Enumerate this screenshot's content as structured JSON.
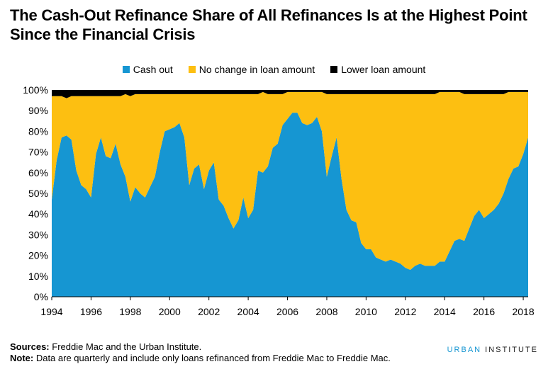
{
  "title": "The Cash-Out Refinance Share of All Refinances Is at the Highest Point Since the Financial Crisis",
  "colors": {
    "cash_out": "#1696d2",
    "no_change": "#fdbf11",
    "lower": "#000000"
  },
  "footer": {
    "sources_label": "Sources:",
    "sources_text": " Freddie Mac and the Urban Institute.",
    "note_label": "Note:",
    "note_text": " Data are quarterly and include only loans refinanced from Freddie Mac to Freddie Mac."
  },
  "brand": {
    "part1": "URBAN",
    "part2": " INSTITUTE"
  },
  "chart_data": {
    "type": "area",
    "stacked": true,
    "legend_position": "top",
    "grid": false,
    "x_start_quarter": "1994Q1",
    "x_ticks": [
      "1994",
      "1996",
      "1998",
      "2000",
      "2002",
      "2004",
      "2006",
      "2008",
      "2010",
      "2012",
      "2014",
      "2016",
      "2018"
    ],
    "y_ticks": [
      "0%",
      "10%",
      "20%",
      "30%",
      "40%",
      "50%",
      "60%",
      "70%",
      "80%",
      "90%",
      "100%"
    ],
    "ylim": [
      0,
      100
    ],
    "series": [
      {
        "name": "Cash out",
        "color": "#1696d2",
        "values": [
          47,
          66,
          77,
          78,
          76,
          61,
          54,
          52,
          48,
          69,
          77,
          68,
          67,
          74,
          64,
          58,
          46,
          53,
          50,
          48,
          53,
          58,
          70,
          80,
          81,
          82,
          84,
          77,
          54,
          62,
          64,
          52,
          61,
          65,
          47,
          44,
          38,
          33,
          37,
          48,
          38,
          42,
          61,
          60,
          63,
          72,
          74,
          83,
          86,
          89,
          89,
          84,
          83,
          84,
          87,
          80,
          58,
          68,
          77,
          57,
          42,
          37,
          36,
          26,
          23,
          23,
          19,
          18,
          17,
          18,
          17,
          16,
          14,
          13,
          15,
          16,
          15,
          15,
          15,
          17,
          17,
          22,
          27,
          28,
          27,
          33,
          39,
          42,
          38,
          40,
          42,
          45,
          50,
          57,
          62,
          63,
          69,
          77
        ]
      },
      {
        "name": "No change in loan amount",
        "color": "#fdbf11",
        "values": [
          50,
          31,
          20,
          18,
          21,
          36,
          43,
          45,
          49,
          28,
          20,
          29,
          30,
          23,
          33,
          40,
          51,
          45,
          48,
          50,
          45,
          40,
          28,
          18,
          17,
          16,
          14,
          21,
          44,
          36,
          34,
          46,
          37,
          33,
          51,
          54,
          60,
          65,
          61,
          50,
          60,
          56,
          37,
          39,
          35,
          26,
          24,
          15,
          13,
          10,
          10,
          15,
          16,
          15,
          12,
          19,
          40,
          30,
          21,
          41,
          56,
          61,
          62,
          72,
          75,
          75,
          79,
          80,
          81,
          80,
          81,
          82,
          84,
          85,
          83,
          82,
          83,
          83,
          83,
          82,
          82,
          77,
          72,
          71,
          71,
          65,
          59,
          56,
          60,
          58,
          56,
          53,
          48,
          42,
          37,
          36,
          30,
          22
        ]
      },
      {
        "name": "Lower loan amount",
        "color": "#000000",
        "values": [
          3,
          3,
          3,
          4,
          3,
          3,
          3,
          3,
          3,
          3,
          3,
          3,
          3,
          3,
          3,
          2,
          3,
          2,
          2,
          2,
          2,
          2,
          2,
          2,
          2,
          2,
          2,
          2,
          2,
          2,
          2,
          2,
          2,
          2,
          2,
          2,
          2,
          2,
          2,
          2,
          2,
          2,
          2,
          1,
          2,
          2,
          2,
          2,
          1,
          1,
          1,
          1,
          1,
          1,
          1,
          1,
          2,
          2,
          2,
          2,
          2,
          2,
          2,
          2,
          2,
          2,
          2,
          2,
          2,
          2,
          2,
          2,
          2,
          2,
          2,
          2,
          2,
          2,
          2,
          1,
          1,
          1,
          1,
          1,
          2,
          2,
          2,
          2,
          2,
          2,
          2,
          2,
          2,
          1,
          1,
          1,
          1,
          1
        ]
      }
    ]
  }
}
